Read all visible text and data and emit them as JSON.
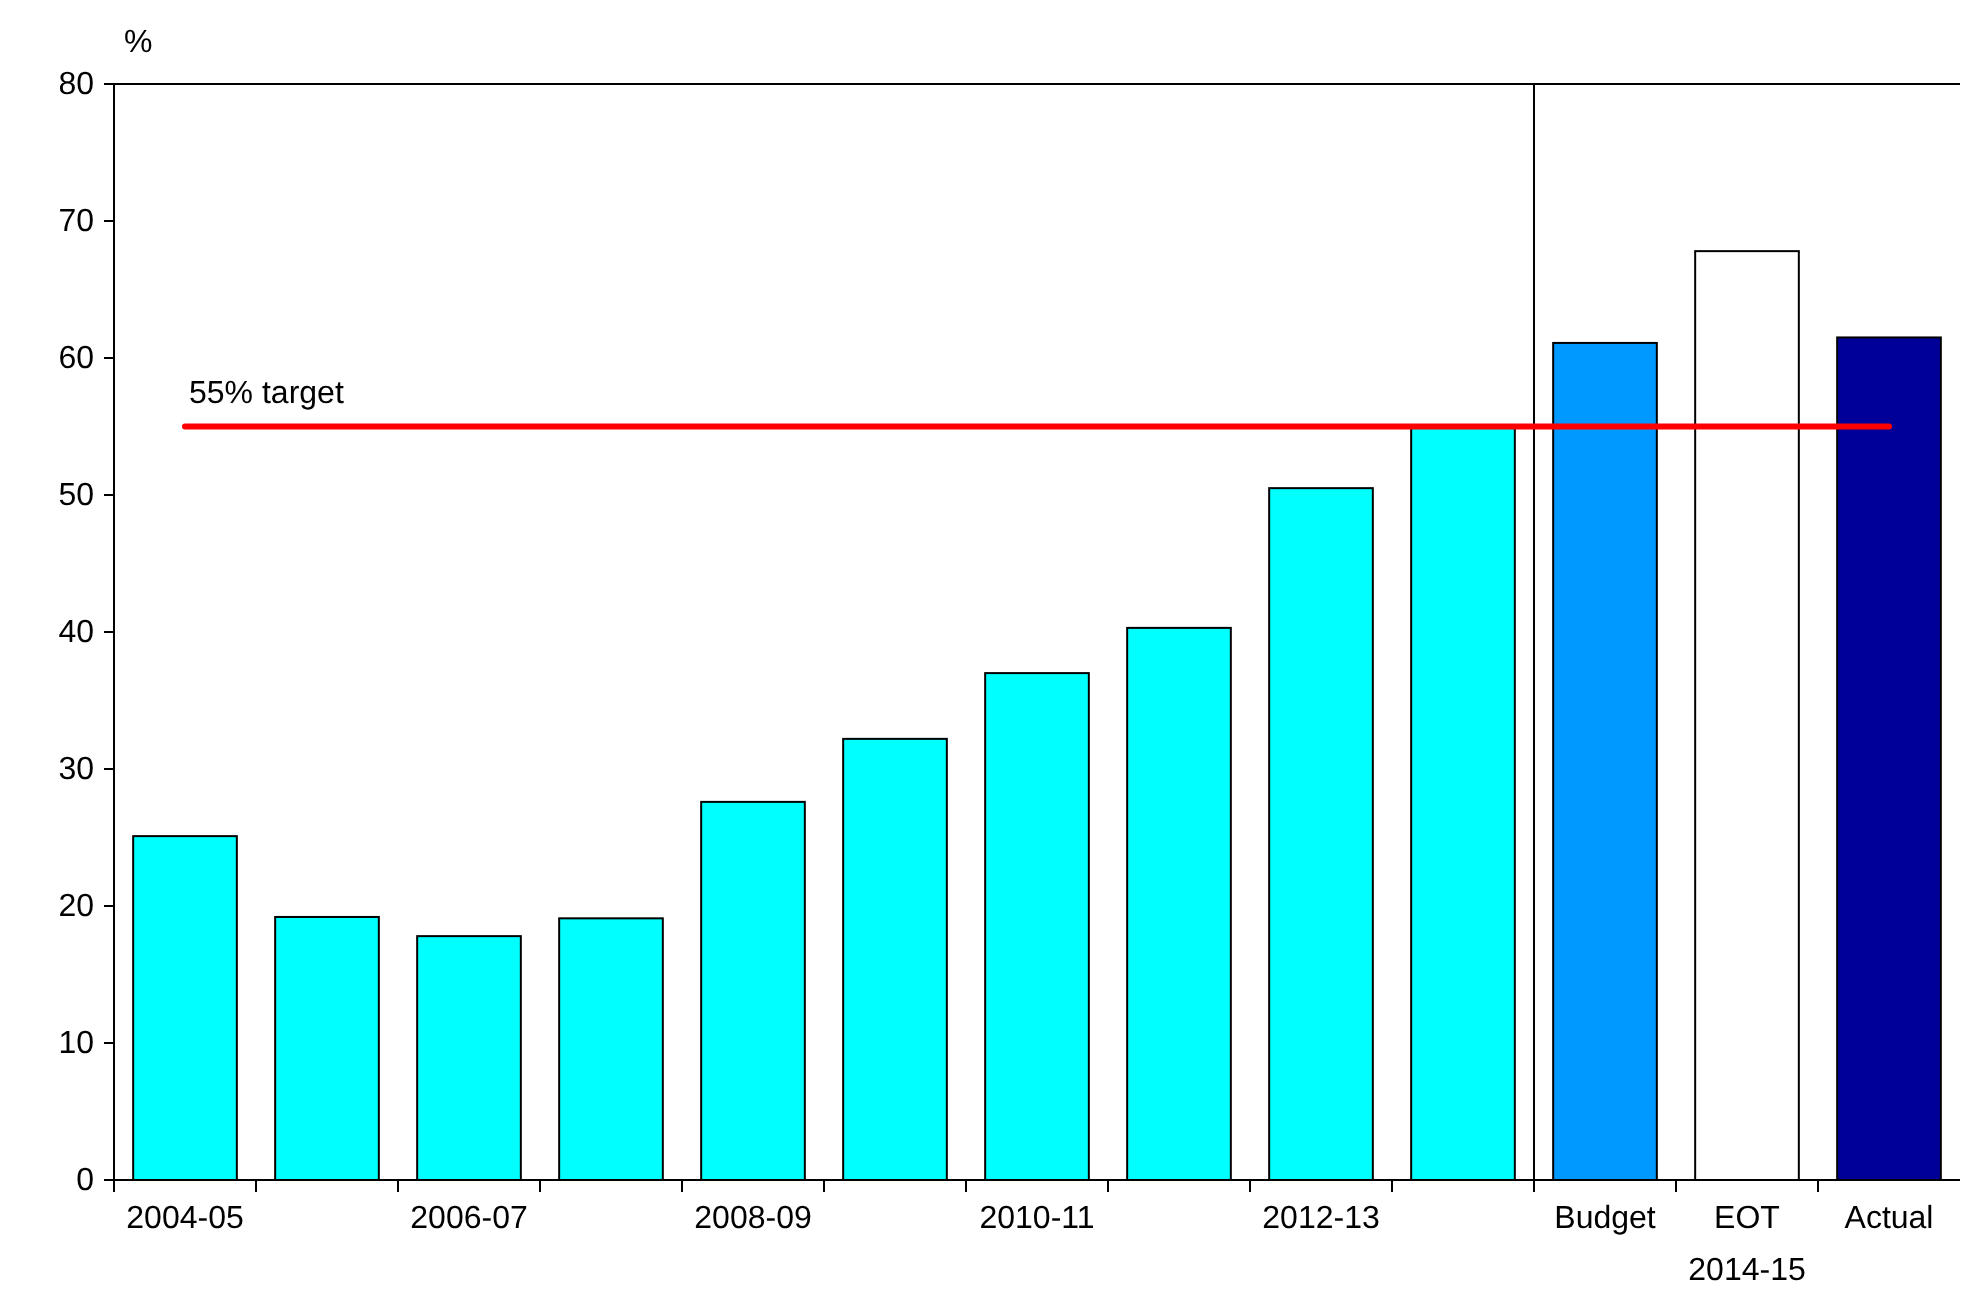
{
  "chart_data": {
    "type": "bar",
    "ylabel": "%",
    "categories": [
      "2004-05",
      null,
      "2006-07",
      null,
      "2008-09",
      null,
      "2010-11",
      null,
      "2012-13",
      null,
      "Budget",
      "EOT",
      "Actual"
    ],
    "values": [
      25.1,
      19.2,
      17.8,
      19.1,
      27.6,
      32.2,
      37.0,
      40.3,
      50.5,
      55.0,
      61.1,
      67.8,
      61.5
    ],
    "colors": [
      "#00ffff",
      "#00ffff",
      "#00ffff",
      "#00ffff",
      "#00ffff",
      "#00ffff",
      "#00ffff",
      "#00ffff",
      "#00ffff",
      "#00ffff",
      "#0099ff",
      "#ffffff",
      "#000099"
    ],
    "ylim": [
      0,
      80
    ],
    "yticks": [
      0,
      10,
      20,
      30,
      40,
      50,
      60,
      70,
      80
    ],
    "ref_lines": [
      {
        "axis": "y",
        "value": 55,
        "label": "55% target",
        "color": "#ff0000"
      }
    ],
    "annotations": [
      "2014-15"
    ],
    "grid": false
  }
}
